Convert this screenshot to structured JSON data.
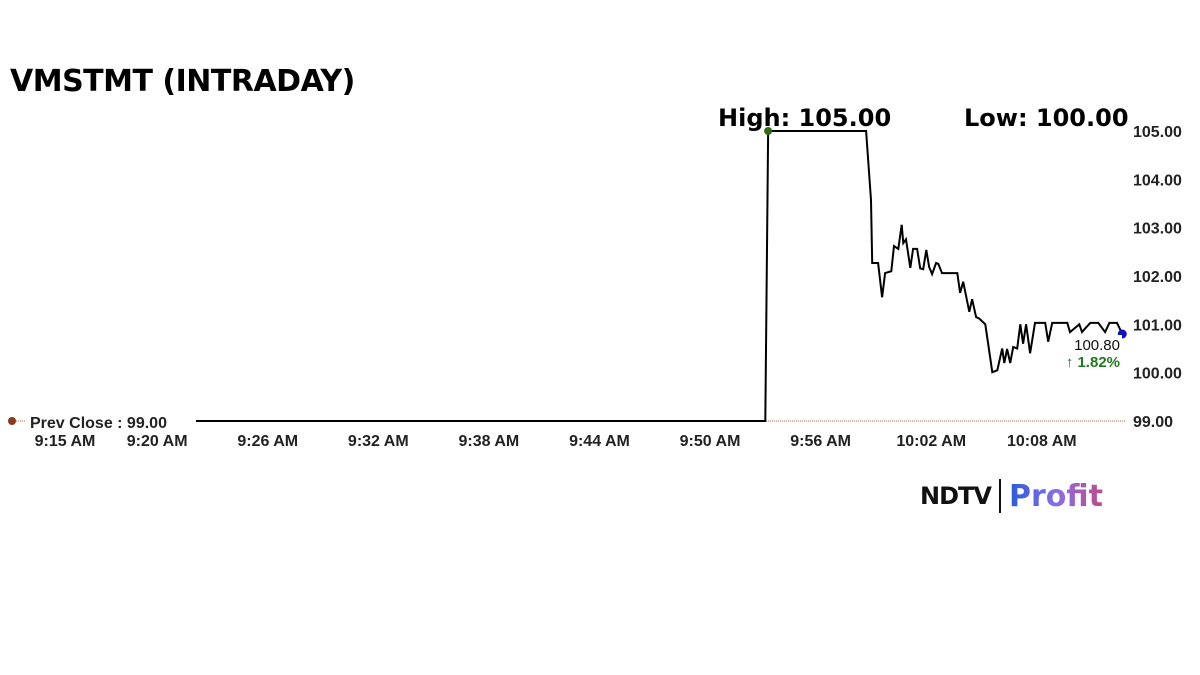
{
  "title": "VMSTMT (INTRADAY)",
  "high_label": "High: 105.00",
  "low_label": "Low: 100.00",
  "logo": {
    "ndtv": "NDTV",
    "profit": "Profit"
  },
  "chart_data": {
    "type": "line",
    "title": "VMSTMT (INTRADAY)",
    "ylim": [
      99,
      105
    ],
    "y_ticks": [
      "99.00",
      "100.00",
      "101.00",
      "102.00",
      "103.00",
      "104.00",
      "105.00"
    ],
    "x_ticks": [
      "9:15 AM",
      "9:20 AM",
      "9:26 AM",
      "9:32 AM",
      "9:38 AM",
      "9:44 AM",
      "9:50 AM",
      "9:56 AM",
      "10:02 AM",
      "10:08 AM"
    ],
    "prev_close": {
      "label": "Prev Close : 99.00",
      "value": 99.0
    },
    "last": {
      "price_label": "100.80",
      "change_label": "↑ 1.82%",
      "value": 100.8
    },
    "high": 105.0,
    "low": 100.0,
    "colors": {
      "line": "#000000",
      "high_dot": "#2e6b12",
      "last_dot": "#1010c0",
      "change": "#1f7a1f",
      "prev_close_dot": "#8b3a1a"
    },
    "grid": false,
    "series": [
      {
        "values": [
          [
            "9:15:00",
            99.0
          ],
          [
            "9:53:00",
            99.0
          ],
          [
            "9:53:09",
            104.9
          ],
          [
            "9:53:10",
            105.0
          ],
          [
            "9:58:28",
            105.0
          ],
          [
            "9:58:44",
            103.57
          ],
          [
            "9:58:48",
            102.27
          ],
          [
            "9:59:07",
            102.27
          ],
          [
            "9:59:20",
            101.56
          ],
          [
            "9:59:30",
            102.06
          ],
          [
            "9:59:50",
            102.1
          ],
          [
            "9:59:59",
            102.62
          ],
          [
            "10:00:13",
            102.56
          ],
          [
            "10:00:24",
            103.06
          ],
          [
            "10:00:29",
            102.68
          ],
          [
            "10:00:38",
            102.76
          ],
          [
            "10:00:52",
            102.17
          ],
          [
            "10:01:01",
            102.56
          ],
          [
            "10:01:14",
            102.56
          ],
          [
            "10:01:24",
            102.16
          ],
          [
            "10:01:34",
            102.14
          ],
          [
            "10:01:44",
            102.54
          ],
          [
            "10:01:53",
            102.19
          ],
          [
            "10:02:03",
            102.04
          ],
          [
            "10:02:16",
            102.27
          ],
          [
            "10:02:23",
            102.25
          ],
          [
            "10:02:35",
            102.06
          ],
          [
            "10:03:25",
            102.06
          ],
          [
            "10:03:34",
            101.65
          ],
          [
            "10:03:44",
            101.88
          ],
          [
            "10:04:04",
            101.26
          ],
          [
            "10:04:13",
            101.52
          ],
          [
            "10:04:26",
            101.15
          ],
          [
            "10:04:36",
            101.12
          ],
          [
            "10:04:56",
            101.0
          ],
          [
            "10:05:19",
            100.01
          ],
          [
            "10:05:35",
            100.05
          ],
          [
            "10:05:51",
            100.5
          ],
          [
            "10:05:58",
            100.2
          ],
          [
            "10:06:07",
            100.49
          ],
          [
            "10:06:17",
            100.2
          ],
          [
            "10:06:27",
            100.53
          ],
          [
            "10:06:40",
            100.5
          ],
          [
            "10:06:50",
            101.0
          ],
          [
            "10:06:59",
            100.6
          ],
          [
            "10:07:09",
            101.0
          ],
          [
            "10:07:22",
            100.4
          ],
          [
            "10:07:38",
            101.03
          ],
          [
            "10:08:11",
            101.03
          ],
          [
            "10:08:21",
            100.64
          ],
          [
            "10:08:34",
            101.03
          ],
          [
            "10:09:23",
            101.03
          ],
          [
            "10:09:32",
            100.84
          ],
          [
            "10:10:02",
            101.0
          ],
          [
            "10:10:11",
            100.84
          ],
          [
            "10:10:22",
            100.92
          ],
          [
            "10:10:38",
            101.03
          ],
          [
            "10:11:04",
            101.03
          ],
          [
            "10:11:26",
            100.84
          ],
          [
            "10:11:40",
            101.03
          ],
          [
            "10:12:05",
            101.03
          ],
          [
            "10:12:22",
            100.8
          ]
        ]
      }
    ]
  }
}
